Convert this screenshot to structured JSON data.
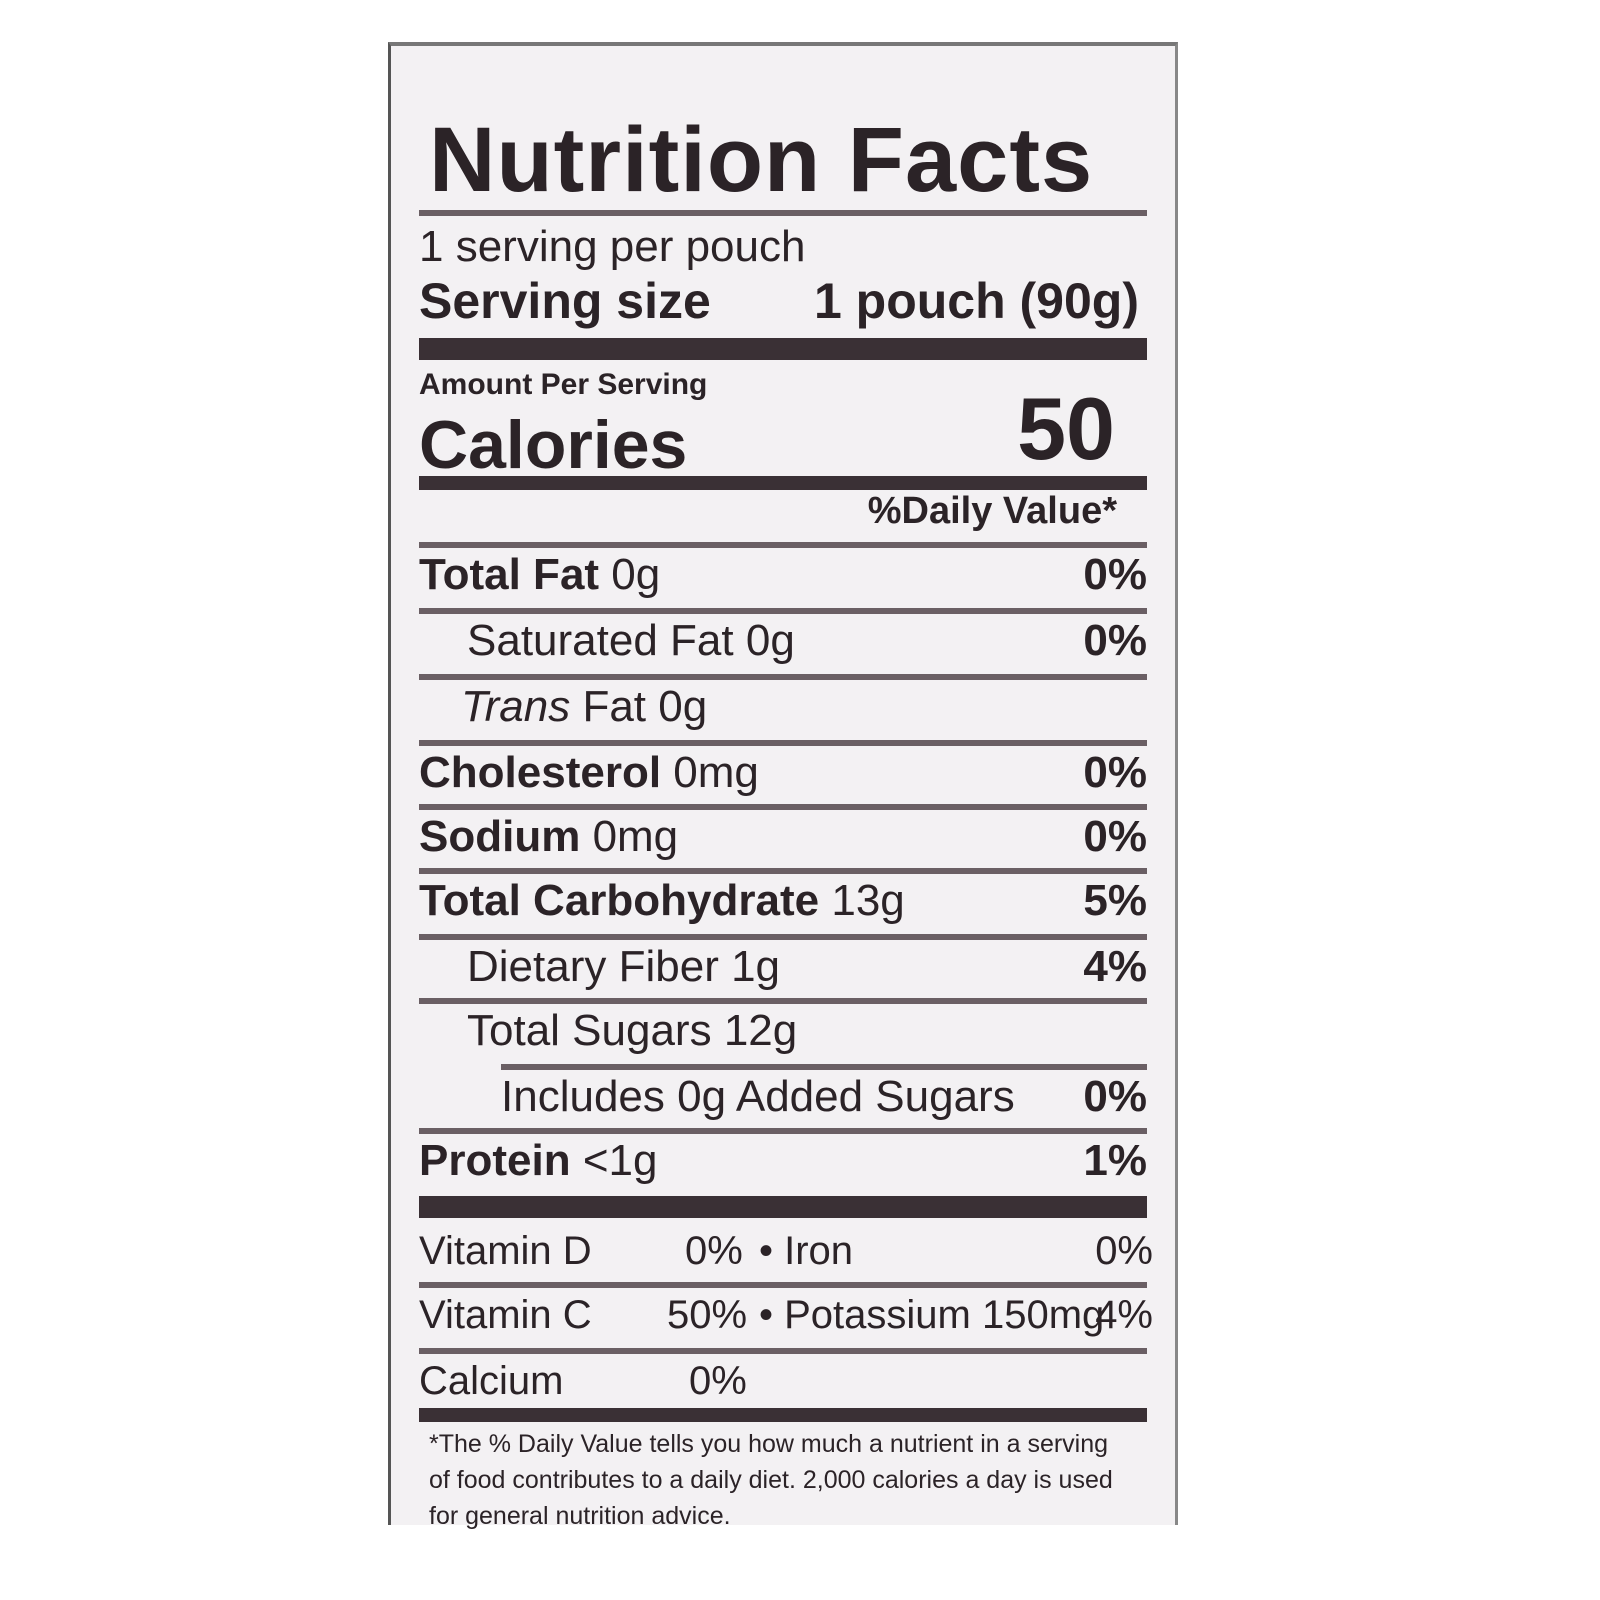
{
  "title": "Nutrition Facts",
  "servings_per_container": "1 serving per pouch",
  "serving_size_label": "Serving size",
  "serving_size_value": "1 pouch (90g)",
  "amount_per_serving": "Amount Per Serving",
  "calories_label": "Calories",
  "calories_value": "50",
  "daily_value_header": "%Daily Value*",
  "nutrients": [
    {
      "name": "Total Fat",
      "amount": "0g",
      "dv": "0%"
    },
    {
      "name": "Saturated Fat",
      "amount": "0g",
      "dv": "0%"
    },
    {
      "name_italic": "Trans",
      "name": "Fat",
      "amount": "0g",
      "dv": ""
    },
    {
      "name": "Cholesterol",
      "amount": "0mg",
      "dv": "0%"
    },
    {
      "name": "Sodium",
      "amount": "0mg",
      "dv": "0%"
    },
    {
      "name": "Total Carbohydrate",
      "amount": "13g",
      "dv": "5%"
    },
    {
      "name": "Dietary Fiber",
      "amount": "1g",
      "dv": "4%"
    },
    {
      "name": "Total Sugars",
      "amount": "12g",
      "dv": ""
    },
    {
      "name": "Includes 0g Added Sugars",
      "amount": "",
      "dv": "0%"
    },
    {
      "name": "Protein",
      "amount": "<1g",
      "dv": "1%"
    }
  ],
  "vitamins": [
    {
      "left_name": "Vitamin D",
      "left_dv": "0%",
      "right_name": "• Iron",
      "right_dv": "0%"
    },
    {
      "left_name": "Vitamin C",
      "left_dv": "50%",
      "right_name": "• Potassium 150mg",
      "right_dv": "4%"
    },
    {
      "left_name": "Calcium",
      "left_dv": "0%",
      "right_name": "",
      "right_dv": ""
    }
  ],
  "footnote": "*The % Daily Value tells you how much a nutrient in a serving of food contributes to a daily diet. 2,000 calories a day is used for general nutrition advice."
}
